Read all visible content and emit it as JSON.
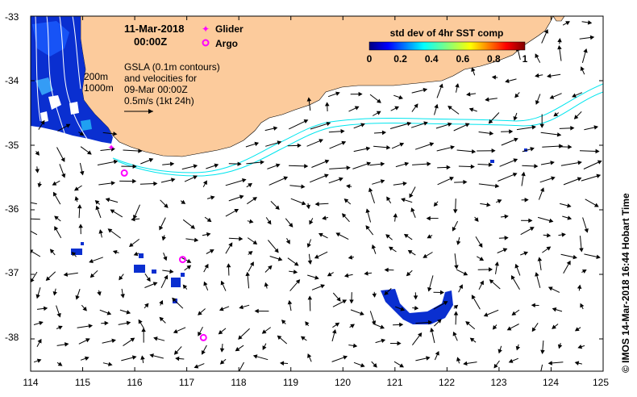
{
  "title": {
    "date": "11-Mar-2018",
    "time": "00:00Z"
  },
  "legend": {
    "glider_label": "Glider",
    "argo_label": "Argo",
    "glider_color": "#ff00ff",
    "argo_color": "#ff00ff"
  },
  "info": {
    "line1": "GSLA (0.1m contours)",
    "line2": "and velocities for",
    "line3": "09-Mar 00:00Z",
    "line4": "0.5m/s (1kt 24h)"
  },
  "isobaths": {
    "shallow": "200m",
    "deep": "1000m",
    "color": "#ffffff"
  },
  "colorbar": {
    "title": "std dev of 4hr SST comp",
    "tick_labels": [
      "0",
      "0.2",
      "0.4",
      "0.6",
      "0.8",
      "1"
    ],
    "range": [
      0,
      1
    ],
    "colormap": "jet"
  },
  "credit": "© IMOS 14-Mar-2018 16:44 Hobart Time",
  "colors": {
    "land": "#fccb9c",
    "ocean": "#ffffff",
    "isobath_cyan": "#00e5ee",
    "sst_dark": "#0a2fd0",
    "arrow": "#000000"
  },
  "axes": {
    "x_ticks": [
      "114",
      "115",
      "116",
      "117",
      "118",
      "119",
      "120",
      "121",
      "122",
      "123",
      "124",
      "125"
    ],
    "y_ticks": [
      "-33",
      "-34",
      "-35",
      "-36",
      "-37",
      "-38"
    ],
    "lon_range": [
      114,
      125
    ],
    "lat_range": [
      -38.5,
      -33
    ]
  },
  "argo_positions": [
    {
      "lon": 115.8,
      "lat": -35.43
    },
    {
      "lon": 116.92,
      "lat": -36.77
    },
    {
      "lon": 117.32,
      "lat": -37.98
    }
  ],
  "glider_position": {
    "lon": 115.55,
    "lat": -35.03
  }
}
